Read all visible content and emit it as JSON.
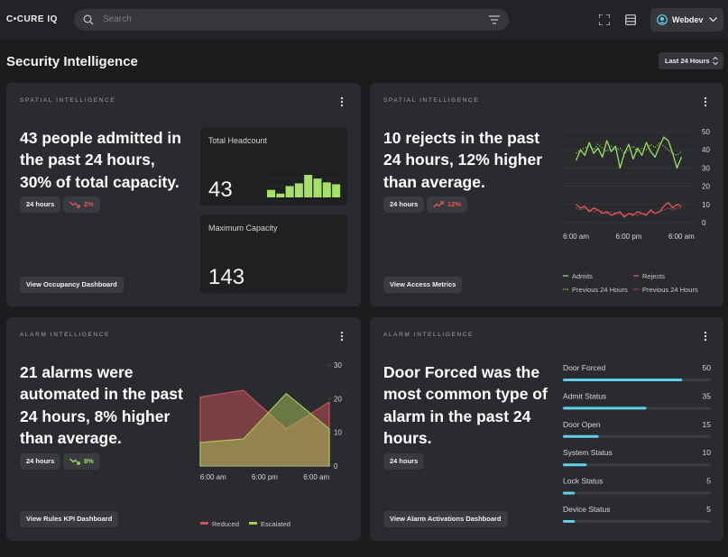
{
  "header": {
    "logo": "C•CURE IQ",
    "search_placeholder": "Search",
    "user": "Webdev"
  },
  "page": {
    "title": "Security Intelligence",
    "range": "Last 24 Hours"
  },
  "occupancy": {
    "label": "SPATIAL INTELLIGENCE",
    "headline": [
      "43 people admitted in",
      "the past 24 hours,",
      "30% of total capacity."
    ],
    "period": "24 hours",
    "change": {
      "text": "2%",
      "direction": "down",
      "color": "#e0575b"
    },
    "button": "View Occupancy Dashboard",
    "headcount": {
      "label": "Total Headcount",
      "value": 43,
      "trend": {
        "type": "bar",
        "values": [
          8,
          4,
          12,
          15,
          24,
          20,
          16,
          14
        ],
        "ylim": [
          0,
          25
        ],
        "color": "#a6e06a"
      }
    },
    "capacity": {
      "label": "Maximum Capacity",
      "value": 143
    }
  },
  "access": {
    "label": "SPATIAL INTELLIGENCE",
    "headline": [
      "10 rejects in the past",
      "24 hours, 12% higher",
      "than average."
    ],
    "period": "24 hours",
    "change": {
      "text": "12%",
      "direction": "up",
      "color": "#e0575b"
    },
    "button": "View Access Metrics",
    "chart": {
      "type": "line",
      "x": [
        0,
        1,
        2,
        3,
        4,
        5,
        6,
        7,
        8,
        9,
        10,
        11,
        12,
        13,
        14,
        15,
        16,
        17,
        18,
        19,
        20,
        21,
        22,
        23,
        24
      ],
      "xlim": [
        -3,
        27
      ],
      "xticks": [
        {
          "value": 0,
          "label": "6:00 am"
        },
        {
          "value": 12,
          "label": "6:00 pm"
        },
        {
          "value": 24,
          "label": "6:00 am"
        }
      ],
      "ylim": [
        0,
        50
      ],
      "yticks": [
        0,
        10,
        20,
        30,
        40,
        50
      ],
      "grid": true,
      "series": [
        {
          "name": "Admits",
          "color": "#9be05f",
          "dashed": false,
          "values": [
            34,
            40,
            37,
            44,
            38,
            41,
            36,
            45,
            39,
            42,
            30,
            38,
            43,
            35,
            41,
            37,
            44,
            39,
            36,
            42,
            47,
            45,
            38,
            30,
            36
          ]
        },
        {
          "name": "Rejects",
          "color": "#e0575b",
          "dashed": false,
          "values": [
            10,
            8,
            9,
            6,
            8,
            7,
            5,
            6,
            4,
            5,
            6,
            3,
            5,
            4,
            6,
            5,
            4,
            7,
            5,
            6,
            9,
            11,
            8,
            10,
            9
          ]
        },
        {
          "name": "Previous 24 Hours",
          "color": "#9be05f",
          "dashed": true,
          "values": [
            38,
            40,
            41,
            42,
            40,
            43,
            41,
            39,
            42,
            40,
            41,
            38,
            40,
            42,
            39,
            41,
            40,
            43,
            41,
            44,
            42,
            40,
            38,
            37,
            39
          ]
        },
        {
          "name": "Previous 24 Hours",
          "color": "#e0575b",
          "dashed": true,
          "values": [
            8,
            7,
            8,
            7,
            6,
            7,
            6,
            5,
            6,
            5,
            5,
            4,
            5,
            5,
            4,
            5,
            5,
            6,
            5,
            6,
            7,
            8,
            7,
            8,
            8
          ]
        }
      ]
    }
  },
  "alarms": {
    "label": "ALARM INTELLIGENCE",
    "headline": [
      "21 alarms were",
      "automated in the past",
      "24 hours, 8% higher",
      "than average."
    ],
    "period": "24 hours",
    "change": {
      "text": "8%",
      "direction": "down",
      "color": "#9be05f"
    },
    "button": "View Rules KPI Dashboard",
    "chart": {
      "type": "area",
      "x": [
        -3,
        7,
        17,
        27
      ],
      "xlim": [
        -3,
        27
      ],
      "xticks": [
        {
          "value": 0,
          "label": "6:00 am"
        },
        {
          "value": 12,
          "label": "6:00 pm"
        },
        {
          "value": 24,
          "label": "6:00 am"
        }
      ],
      "ylim": [
        0,
        30
      ],
      "yticks": [
        0,
        10,
        20,
        30
      ],
      "series": [
        {
          "name": "Reduced",
          "color": "#c9525c",
          "values": [
            20.5,
            22.5,
            11,
            19
          ]
        },
        {
          "name": "Escalated",
          "color": "#a9c85a",
          "values": [
            7,
            8,
            21.5,
            11
          ]
        }
      ]
    }
  },
  "types": {
    "label": "ALARM INTELLIGENCE",
    "headline": [
      "Door Forced was the",
      "most common type of",
      "alarm in the past 24",
      "hours."
    ],
    "period": "24 hours",
    "button": "View Alarm Activations Dashboard",
    "chart": {
      "type": "bar",
      "orientation": "horizontal",
      "categories": [
        "Door Forced",
        "Admit Status",
        "Door Open",
        "System Status",
        "Lock Status",
        "Device Status"
      ],
      "values": [
        50,
        35,
        15,
        10,
        5,
        5
      ],
      "xlim": [
        0,
        62
      ],
      "color": "#5fd0ec"
    }
  }
}
